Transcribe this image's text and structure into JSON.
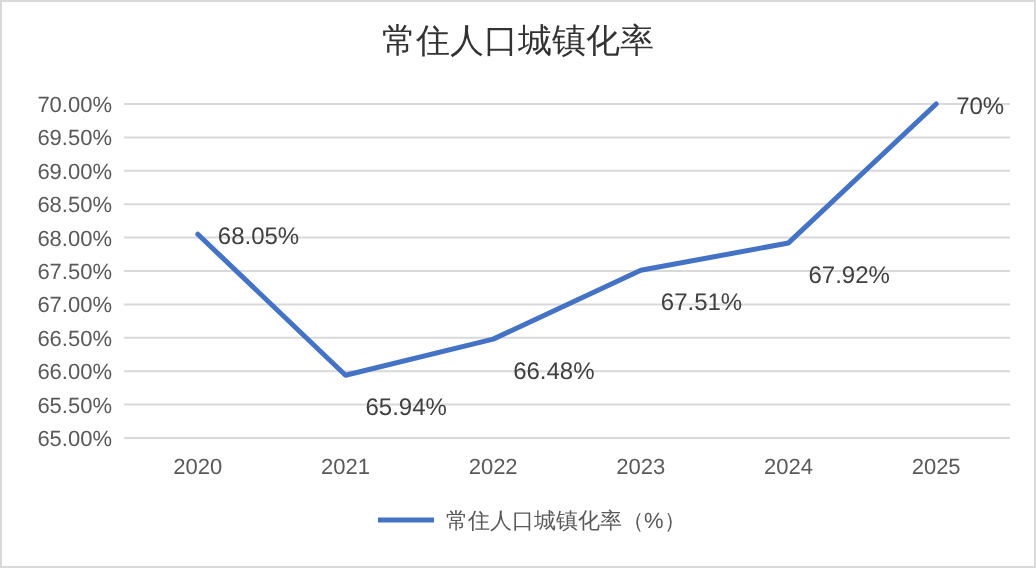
{
  "chart_data": {
    "type": "line",
    "title": "常住人口城镇化率",
    "categories": [
      "2020",
      "2021",
      "2022",
      "2023",
      "2024",
      "2025"
    ],
    "series": [
      {
        "name": "常住人口城镇化率（%）",
        "color": "#4472c4",
        "values": [
          68.05,
          65.94,
          66.48,
          67.51,
          67.92,
          70
        ],
        "value_labels": [
          "68.05%",
          "65.94%",
          "66.48%",
          "67.51%",
          "67.92%",
          "70%"
        ]
      }
    ],
    "ylim": [
      65,
      70
    ],
    "yticks": [
      {
        "value": 65,
        "label": "65.00%"
      },
      {
        "value": 65.5,
        "label": "65.50%"
      },
      {
        "value": 66,
        "label": "66.00%"
      },
      {
        "value": 66.5,
        "label": "66.50%"
      },
      {
        "value": 67,
        "label": "67.00%"
      },
      {
        "value": 67.5,
        "label": "67.50%"
      },
      {
        "value": 68,
        "label": "68.00%"
      },
      {
        "value": 68.5,
        "label": "68.50%"
      },
      {
        "value": 69,
        "label": "69.00%"
      },
      {
        "value": 69.5,
        "label": "69.50%"
      },
      {
        "value": 70,
        "label": "70.00%"
      }
    ],
    "grid": "y",
    "legend": "bottom",
    "marker": "none",
    "line_style": "solid"
  }
}
